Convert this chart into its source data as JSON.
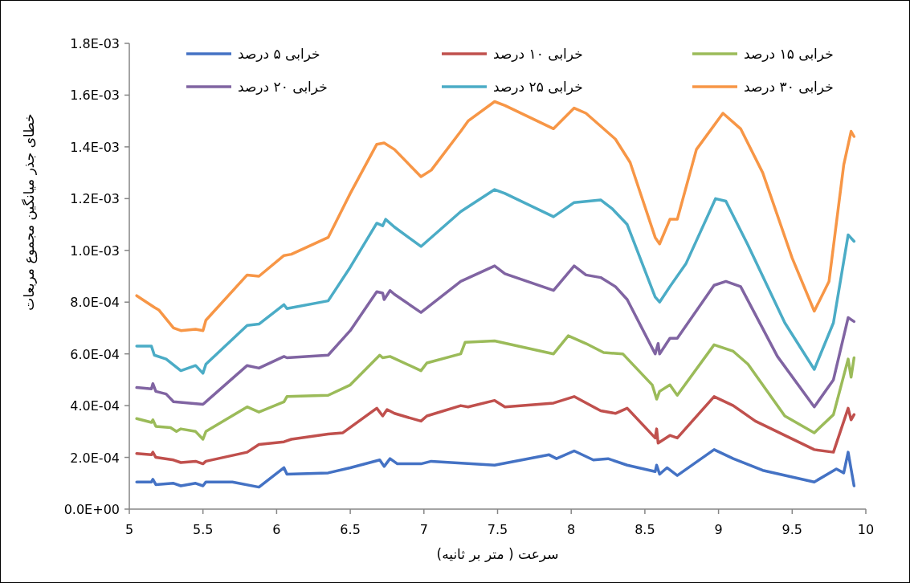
{
  "chart_data": {
    "type": "line",
    "xlabel": "سرعت ( متر بر ثانیه)",
    "ylabel": "خطای جذر میانگین مجموع مربعات",
    "legend": "top",
    "xlim": [
      5,
      10
    ],
    "xticks": [
      5,
      5.5,
      6,
      6.5,
      7,
      7.5,
      8,
      8.5,
      9,
      9.5,
      10
    ],
    "ylim": [
      0,
      0.0018
    ],
    "yticks": [
      {
        "value": 0,
        "label": "0.0E+00"
      },
      {
        "value": 0.0002,
        "label": "2.0E-04"
      },
      {
        "value": 0.0004,
        "label": "4.0E-04"
      },
      {
        "value": 0.0006,
        "label": "6.0E-04"
      },
      {
        "value": 0.0008,
        "label": "8.0E-04"
      },
      {
        "value": 0.001,
        "label": "1.0E-03"
      },
      {
        "value": 0.0012,
        "label": "1.2E-03"
      },
      {
        "value": 0.0014,
        "label": "1.4E-03"
      },
      {
        "value": 0.0016,
        "label": "1.6E-03"
      },
      {
        "value": 0.0018,
        "label": "1.8E-03"
      }
    ],
    "series": [
      {
        "name": "خرابی ۵ درصد",
        "color": "#4472c4",
        "x": [
          5.05,
          5.15,
          5.16,
          5.18,
          5.3,
          5.35,
          5.45,
          5.5,
          5.52,
          5.7,
          5.88,
          6.05,
          6.07,
          6.35,
          6.5,
          6.7,
          6.73,
          6.77,
          6.82,
          6.98,
          7.05,
          7.48,
          7.85,
          7.9,
          8.02,
          8.15,
          8.25,
          8.38,
          8.57,
          8.58,
          8.6,
          8.65,
          8.72,
          8.97,
          9.1,
          9.3,
          9.65,
          9.8,
          9.85,
          9.88,
          9.92
        ],
        "values": [
          0.000105,
          0.000105,
          0.000115,
          9.5e-05,
          0.0001,
          9e-05,
          0.0001,
          9e-05,
          0.000105,
          0.000105,
          8.5e-05,
          0.00016,
          0.000135,
          0.00014,
          0.00016,
          0.00019,
          0.000165,
          0.000195,
          0.000175,
          0.000175,
          0.000185,
          0.00017,
          0.00021,
          0.000195,
          0.000225,
          0.00019,
          0.000195,
          0.00017,
          0.000145,
          0.00017,
          0.000135,
          0.00016,
          0.00013,
          0.00023,
          0.000195,
          0.00015,
          0.000105,
          0.000155,
          0.00014,
          0.00022,
          9e-05
        ]
      },
      {
        "name": "خرابی ۱۰ درصد",
        "color": "#c0504d",
        "x": [
          5.05,
          5.15,
          5.16,
          5.18,
          5.3,
          5.35,
          5.45,
          5.5,
          5.52,
          5.8,
          5.88,
          6.05,
          6.1,
          6.35,
          6.45,
          6.68,
          6.72,
          6.75,
          6.8,
          6.98,
          7.02,
          7.25,
          7.3,
          7.48,
          7.55,
          7.88,
          8.02,
          8.2,
          8.3,
          8.38,
          8.57,
          8.58,
          8.59,
          8.67,
          8.72,
          8.97,
          9.1,
          9.25,
          9.65,
          9.78,
          9.88,
          9.9,
          9.92
        ],
        "values": [
          0.000215,
          0.00021,
          0.00022,
          0.0002,
          0.00019,
          0.00018,
          0.000185,
          0.000175,
          0.000185,
          0.00022,
          0.00025,
          0.00026,
          0.00027,
          0.00029,
          0.000295,
          0.00039,
          0.00036,
          0.000385,
          0.00037,
          0.00034,
          0.00036,
          0.0004,
          0.000395,
          0.00042,
          0.000395,
          0.00041,
          0.000435,
          0.00038,
          0.00037,
          0.00039,
          0.000275,
          0.00031,
          0.000255,
          0.000285,
          0.000275,
          0.000435,
          0.0004,
          0.00034,
          0.00023,
          0.00022,
          0.00039,
          0.000345,
          0.000365
        ]
      },
      {
        "name": "خرابی ۱۵ درصد",
        "color": "#9bbb59",
        "x": [
          5.05,
          5.15,
          5.16,
          5.18,
          5.28,
          5.32,
          5.35,
          5.45,
          5.5,
          5.52,
          5.8,
          5.88,
          6.05,
          6.07,
          6.35,
          6.5,
          6.7,
          6.72,
          6.77,
          6.98,
          7.02,
          7.25,
          7.28,
          7.48,
          7.88,
          7.98,
          8.1,
          8.22,
          8.35,
          8.55,
          8.58,
          8.6,
          8.67,
          8.72,
          8.97,
          9.1,
          9.2,
          9.45,
          9.65,
          9.78,
          9.88,
          9.9,
          9.92
        ],
        "values": [
          0.00035,
          0.000335,
          0.000345,
          0.00032,
          0.000315,
          0.0003,
          0.00031,
          0.0003,
          0.00027,
          0.0003,
          0.000395,
          0.000375,
          0.000415,
          0.000435,
          0.00044,
          0.00048,
          0.000595,
          0.000585,
          0.00059,
          0.000535,
          0.000565,
          0.0006,
          0.000645,
          0.00065,
          0.0006,
          0.00067,
          0.00064,
          0.000605,
          0.0006,
          0.00048,
          0.000425,
          0.000455,
          0.00048,
          0.00044,
          0.000635,
          0.00061,
          0.00056,
          0.00036,
          0.000295,
          0.000365,
          0.00058,
          0.00051,
          0.000585
        ]
      },
      {
        "name": "خرابی ۲۰ درصد",
        "color": "#8064a2",
        "x": [
          5.05,
          5.15,
          5.16,
          5.18,
          5.25,
          5.3,
          5.5,
          5.8,
          5.88,
          6.05,
          6.07,
          6.35,
          6.5,
          6.68,
          6.72,
          6.73,
          6.77,
          6.8,
          6.98,
          7.25,
          7.48,
          7.55,
          7.88,
          8.02,
          8.1,
          8.2,
          8.3,
          8.38,
          8.57,
          8.59,
          8.6,
          8.67,
          8.72,
          8.97,
          9.05,
          9.15,
          9.4,
          9.65,
          9.78,
          9.88,
          9.92
        ],
        "values": [
          0.00047,
          0.000465,
          0.000485,
          0.000455,
          0.000445,
          0.000415,
          0.000405,
          0.000555,
          0.000545,
          0.00059,
          0.000585,
          0.000595,
          0.00069,
          0.00084,
          0.000835,
          0.00081,
          0.000845,
          0.00083,
          0.00076,
          0.00088,
          0.00094,
          0.00091,
          0.000845,
          0.00094,
          0.000905,
          0.000895,
          0.00086,
          0.00081,
          0.0006,
          0.00064,
          0.0006,
          0.00066,
          0.00066,
          0.000865,
          0.00088,
          0.00086,
          0.00059,
          0.000395,
          0.0005,
          0.00074,
          0.000725
        ]
      },
      {
        "name": "خرابی ۲۵ درصد",
        "color": "#4bacc6",
        "x": [
          5.05,
          5.15,
          5.17,
          5.25,
          5.35,
          5.45,
          5.5,
          5.52,
          5.8,
          5.88,
          6.05,
          6.07,
          6.35,
          6.5,
          6.68,
          6.72,
          6.74,
          6.8,
          6.98,
          7.25,
          7.48,
          7.55,
          7.88,
          8.02,
          8.2,
          8.28,
          8.38,
          8.57,
          8.6,
          8.67,
          8.78,
          8.98,
          9.05,
          9.2,
          9.45,
          9.65,
          9.78,
          9.88,
          9.92
        ],
        "values": [
          0.00063,
          0.00063,
          0.000595,
          0.00058,
          0.000535,
          0.000555,
          0.000525,
          0.00056,
          0.00071,
          0.000715,
          0.00079,
          0.000775,
          0.000805,
          0.000935,
          0.001105,
          0.001095,
          0.00112,
          0.00109,
          0.001015,
          0.00115,
          0.001235,
          0.00122,
          0.00113,
          0.001185,
          0.001195,
          0.00116,
          0.0011,
          0.00082,
          0.0008,
          0.00086,
          0.00095,
          0.0012,
          0.00119,
          0.00102,
          0.00072,
          0.00054,
          0.00072,
          0.00106,
          0.001035
        ]
      },
      {
        "name": "خرابی ۳۰ درصد",
        "color": "#f79646",
        "x": [
          5.05,
          5.17,
          5.2,
          5.3,
          5.35,
          5.45,
          5.5,
          5.52,
          5.8,
          5.88,
          6.05,
          6.1,
          6.35,
          6.5,
          6.68,
          6.73,
          6.8,
          6.98,
          7.05,
          7.25,
          7.3,
          7.48,
          7.55,
          7.88,
          8.02,
          8.1,
          8.3,
          8.4,
          8.57,
          8.6,
          8.67,
          8.72,
          8.85,
          9.03,
          9.15,
          9.3,
          9.5,
          9.65,
          9.75,
          9.85,
          9.9,
          9.92
        ],
        "values": [
          0.000825,
          0.00078,
          0.00077,
          0.0007,
          0.00069,
          0.000695,
          0.00069,
          0.00073,
          0.000905,
          0.0009,
          0.00098,
          0.000985,
          0.00105,
          0.00122,
          0.00141,
          0.001415,
          0.00139,
          0.001285,
          0.00131,
          0.00146,
          0.0015,
          0.001575,
          0.00156,
          0.00147,
          0.00155,
          0.00153,
          0.00143,
          0.00134,
          0.00105,
          0.001025,
          0.00112,
          0.00112,
          0.00139,
          0.00153,
          0.00147,
          0.0013,
          0.00097,
          0.000765,
          0.00088,
          0.00133,
          0.00146,
          0.00144
        ]
      }
    ]
  }
}
